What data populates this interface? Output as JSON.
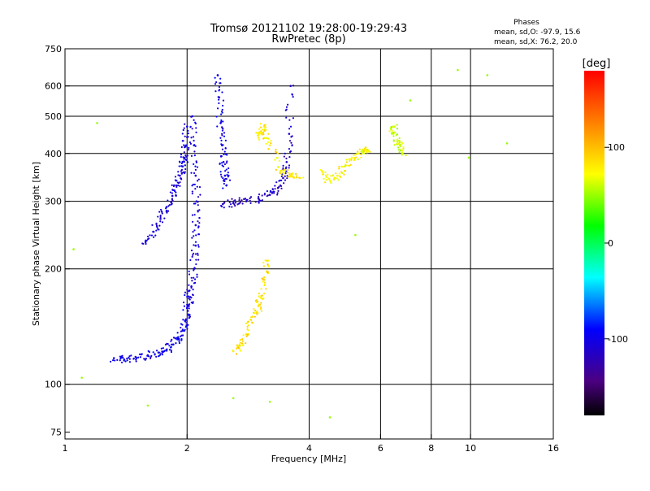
{
  "chart_data": {
    "type": "scatter",
    "title": "Tromsø 20121102 19:28:00-19:29:43",
    "subtitle": "RwPretec (8p)",
    "xlabel": "Frequency [MHz]",
    "ylabel": "Stationary phase Virtual Height [km]",
    "x_scale": "log",
    "y_scale": "log",
    "xlim": [
      1,
      16
    ],
    "ylim": [
      72,
      750
    ],
    "x_ticks": [
      {
        "value": 1,
        "label": "1"
      },
      {
        "value": 2,
        "label": "2"
      },
      {
        "value": 4,
        "label": "4"
      },
      {
        "value": 6,
        "label": "6"
      },
      {
        "value": 8,
        "label": "8"
      },
      {
        "value": 10,
        "label": "10"
      },
      {
        "value": 16,
        "label": "16"
      }
    ],
    "x_grid": [
      2,
      4,
      6,
      8,
      10
    ],
    "y_ticks": [
      {
        "value": 75,
        "label": "75"
      },
      {
        "value": 100,
        "label": "100"
      },
      {
        "value": 200,
        "label": "200"
      },
      {
        "value": 300,
        "label": "300"
      },
      {
        "value": 400,
        "label": "400"
      },
      {
        "value": 500,
        "label": "500"
      },
      {
        "value": 600,
        "label": "600"
      },
      {
        "value": 750,
        "label": "750"
      }
    ],
    "y_grid": [
      100,
      200,
      300,
      400,
      500,
      600
    ],
    "grid": true,
    "info": {
      "heading": "Phases",
      "line1": "mean, sd,O: -97.9, 15.6",
      "line2": "mean, sd,X:  76.2, 20.0"
    },
    "colorbar": {
      "label": "[deg]",
      "range": [
        -180,
        180
      ],
      "ticks": [
        {
          "value": 100,
          "label": "100"
        },
        {
          "value": 0,
          "label": "0"
        },
        {
          "value": -100,
          "label": "-100"
        }
      ]
    },
    "series": [
      {
        "role": "O-mode F2 trace low branch",
        "x": [
          1.32,
          1.4,
          1.5,
          1.6,
          1.7,
          1.78,
          1.85,
          1.9,
          1.95,
          1.98,
          2.0,
          2.02
        ],
        "y": [
          117,
          116,
          117,
          119,
          121,
          123,
          127,
          132,
          138,
          146,
          158,
          175
        ],
        "phase": -100
      },
      {
        "role": "O-mode F1 cusp (1.6-2.0 MHz)",
        "x": [
          1.58,
          1.65,
          1.72,
          1.78,
          1.84,
          1.88,
          1.92,
          1.95,
          1.97,
          1.99,
          2.0
        ],
        "y": [
          235,
          250,
          270,
          290,
          310,
          330,
          350,
          370,
          390,
          420,
          470
        ],
        "phase": -105
      },
      {
        "role": "O-mode vertical trace near 2.0-2.1 MHz",
        "x": [
          2.02,
          2.05,
          2.08,
          2.1,
          2.1,
          2.11,
          2.1,
          2.08,
          2.06
        ],
        "y": [
          160,
          180,
          200,
          230,
          260,
          300,
          350,
          420,
          500
        ],
        "phase": -105
      },
      {
        "role": "O-mode F2 cusp (2.4-2.5 MHz)",
        "x": [
          2.38,
          2.4,
          2.42,
          2.44,
          2.46,
          2.48,
          2.5
        ],
        "y": [
          640,
          560,
          480,
          420,
          380,
          350,
          330
        ],
        "phase": -100
      },
      {
        "role": "O-mode F2 curve rising to foF2 (2.5-3.6 MHz)",
        "x": [
          2.45,
          2.6,
          2.8,
          3.0,
          3.2,
          3.35,
          3.45,
          3.52,
          3.57,
          3.6
        ],
        "y": [
          295,
          297,
          300,
          305,
          312,
          325,
          345,
          380,
          450,
          600
        ],
        "phase": -115
      },
      {
        "role": "X-mode F1 trace (2.6-3.4 MHz)",
        "x": [
          2.6,
          2.7,
          2.8,
          2.9,
          3.0,
          3.05,
          3.1,
          3.15
        ],
        "y": [
          122,
          126,
          135,
          150,
          160,
          170,
          190,
          210
        ],
        "phase": 85
      },
      {
        "role": "X-mode F2 upper trace (3.0-3.8 MHz)",
        "x": [
          3.0,
          3.05,
          3.1,
          3.2,
          3.4,
          3.6,
          3.8
        ],
        "y": [
          440,
          450,
          470,
          420,
          360,
          350,
          345
        ],
        "phase": 80
      },
      {
        "role": "X-mode F2 cluster (4.4-5.6 MHz)",
        "x": [
          4.3,
          4.5,
          4.7,
          4.9,
          5.1,
          5.3,
          5.5,
          5.6
        ],
        "y": [
          360,
          340,
          350,
          370,
          390,
          400,
          410,
          405
        ],
        "phase": 75
      },
      {
        "role": "cluster near 6.5 MHz",
        "x": [
          6.4,
          6.5,
          6.6,
          6.7,
          6.8
        ],
        "y": [
          450,
          470,
          430,
          420,
          400
        ],
        "phase": 60
      },
      {
        "role": "scattered points",
        "x": [
          1.05,
          1.1,
          1.2,
          1.6,
          2.6,
          3.2,
          4.5,
          5.2,
          7.1,
          9.3,
          9.9,
          11.0,
          12.3
        ],
        "y": [
          225,
          104,
          480,
          88,
          92,
          90,
          82,
          245,
          550,
          660,
          390,
          640,
          425
        ],
        "phase": 50
      }
    ]
  }
}
